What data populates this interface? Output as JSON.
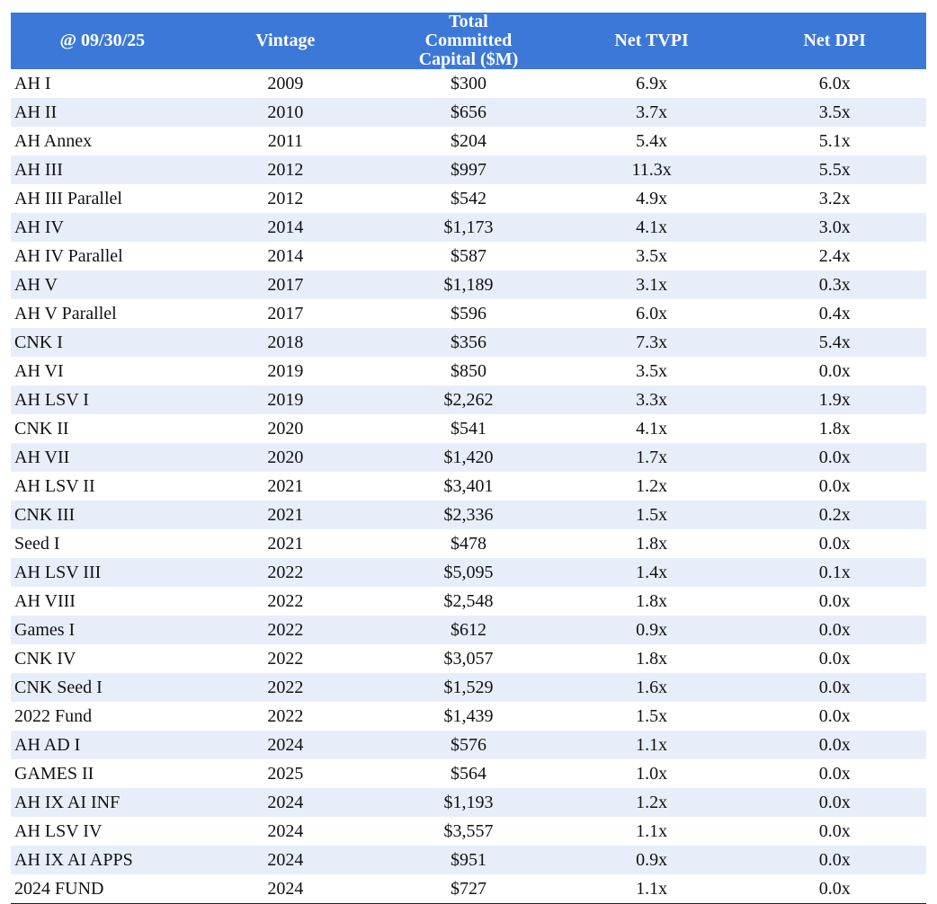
{
  "table": {
    "headers": [
      "@ 09/30/25",
      "Vintage",
      "Total Committed Capital ($M)",
      "Net TVPI",
      "Net DPI"
    ],
    "rows": [
      [
        "AH I",
        "2009",
        "$300",
        "6.9x",
        "6.0x"
      ],
      [
        "AH II",
        "2010",
        "$656",
        "3.7x",
        "3.5x"
      ],
      [
        "AH Annex",
        "2011",
        "$204",
        "5.4x",
        "5.1x"
      ],
      [
        "AH III",
        "2012",
        "$997",
        "11.3x",
        "5.5x"
      ],
      [
        "AH III Parallel",
        "2012",
        "$542",
        "4.9x",
        "3.2x"
      ],
      [
        "AH IV",
        "2014",
        "$1,173",
        "4.1x",
        "3.0x"
      ],
      [
        "AH IV Parallel",
        "2014",
        "$587",
        "3.5x",
        "2.4x"
      ],
      [
        "AH V",
        "2017",
        "$1,189",
        "3.1x",
        "0.3x"
      ],
      [
        "AH V Parallel",
        "2017",
        "$596",
        "6.0x",
        "0.4x"
      ],
      [
        "CNK I",
        "2018",
        "$356",
        "7.3x",
        "5.4x"
      ],
      [
        "AH VI",
        "2019",
        "$850",
        "3.5x",
        "0.0x"
      ],
      [
        "AH LSV I",
        "2019",
        "$2,262",
        "3.3x",
        "1.9x"
      ],
      [
        "CNK II",
        "2020",
        "$541",
        "4.1x",
        "1.8x"
      ],
      [
        "AH VII",
        "2020",
        "$1,420",
        "1.7x",
        "0.0x"
      ],
      [
        "AH LSV II",
        "2021",
        "$3,401",
        "1.2x",
        "0.0x"
      ],
      [
        "CNK III",
        "2021",
        "$2,336",
        "1.5x",
        "0.2x"
      ],
      [
        "Seed I",
        "2021",
        "$478",
        "1.8x",
        "0.0x"
      ],
      [
        "AH LSV III",
        "2022",
        "$5,095",
        "1.4x",
        "0.1x"
      ],
      [
        "AH VIII",
        "2022",
        "$2,548",
        "1.8x",
        "0.0x"
      ],
      [
        "Games I",
        "2022",
        "$612",
        "0.9x",
        "0.0x"
      ],
      [
        "CNK IV",
        "2022",
        "$3,057",
        "1.8x",
        "0.0x"
      ],
      [
        "CNK Seed I",
        "2022",
        "$1,529",
        "1.6x",
        "0.0x"
      ],
      [
        "2022 Fund",
        "2022",
        "$1,439",
        "1.5x",
        "0.0x"
      ],
      [
        "AH AD I",
        "2024",
        "$576",
        "1.1x",
        "0.0x"
      ],
      [
        "GAMES II",
        "2025",
        "$564",
        "1.0x",
        "0.0x"
      ],
      [
        "AH IX AI INF",
        "2024",
        "$1,193",
        "1.2x",
        "0.0x"
      ],
      [
        "AH LSV IV",
        "2024",
        "$3,557",
        "1.1x",
        "0.0x"
      ],
      [
        "AH IX AI APPS",
        "2024",
        "$951",
        "0.9x",
        "0.0x"
      ],
      [
        "2024 FUND",
        "2024",
        "$727",
        "1.1x",
        "0.0x"
      ]
    ]
  }
}
